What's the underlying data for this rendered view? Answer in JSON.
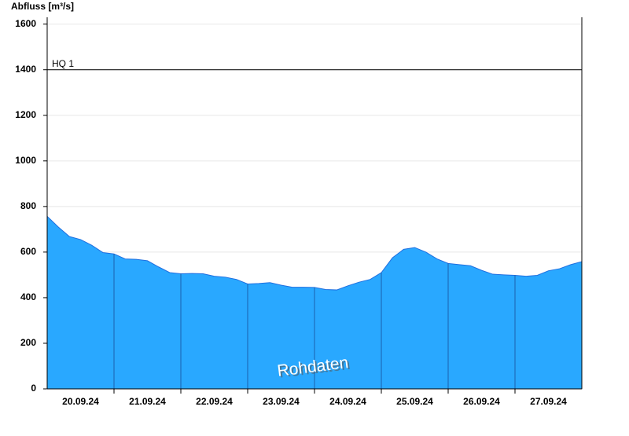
{
  "chart_data": {
    "type": "area",
    "title": "Abfluss [m³/s]",
    "watermark": "Rohdaten",
    "categories": [
      null,
      null,
      null,
      "20.09.24",
      null,
      null,
      null,
      null,
      null,
      "21.09.24",
      null,
      null,
      null,
      null,
      null,
      "22.09.24",
      null,
      null,
      null,
      null,
      null,
      "23.09.24",
      null,
      null,
      null,
      null,
      null,
      "24.09.24",
      null,
      null,
      null,
      null,
      null,
      "25.09.24",
      null,
      null,
      null,
      null,
      null,
      "26.09.24",
      null,
      null,
      null,
      null,
      null,
      "27.09.24",
      null,
      null,
      null
    ],
    "series": [
      {
        "color": "#29a8ff",
        "values": [
          757,
          710,
          668,
          655,
          630,
          598,
          592,
          570,
          568,
          562,
          535,
          510,
          505,
          506,
          505,
          494,
          490,
          480,
          460,
          462,
          466,
          455,
          446,
          446,
          445,
          436,
          434,
          452,
          468,
          480,
          510,
          575,
          612,
          620,
          600,
          570,
          550,
          545,
          540,
          520,
          503,
          500,
          498,
          494,
          498,
          518,
          527,
          545,
          558
        ]
      }
    ],
    "ylim": [
      0,
      1630
    ],
    "yticks": [
      0,
      200,
      400,
      600,
      800,
      1000,
      1200,
      1400,
      1600
    ],
    "grid": true,
    "annotations": [
      {
        "label": "HQ 1",
        "value": 1400
      }
    ]
  }
}
